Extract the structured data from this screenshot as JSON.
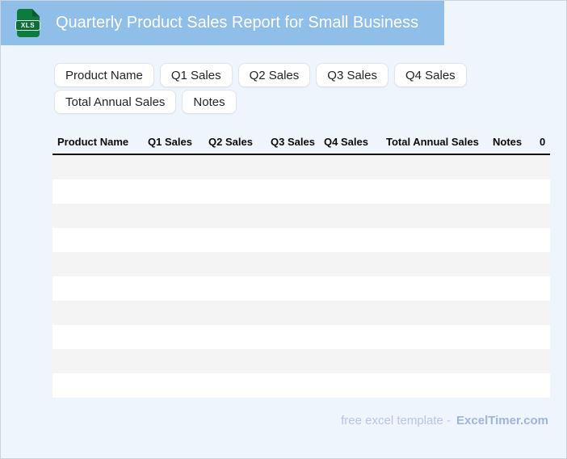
{
  "header": {
    "title": "Quarterly Product Sales Report for Small Business",
    "file_badge": "XLS"
  },
  "field_chips": [
    "Product Name",
    "Q1 Sales",
    "Q2 Sales",
    "Q3 Sales",
    "Q4 Sales",
    "Total Annual Sales",
    "Notes"
  ],
  "table": {
    "columns": [
      "Product Name",
      "Q1 Sales",
      "Q2 Sales",
      "Q3 Sales",
      "Q4 Sales",
      "Total Annual Sales",
      "Notes",
      "0"
    ],
    "empty_row_count": 10
  },
  "footer": {
    "caption": "free excel template -",
    "brand": "ExcelTimer.com"
  },
  "colors": {
    "header_bar": "#8FBEE9",
    "icon_green": "#0E7B3E",
    "icon_fold": "#0A5C2D",
    "page_background": "#EFF5FC",
    "row_stripe": "#F5F4F5",
    "footer_text": "#B6C4EB",
    "footer_brand": "#9FB3DC"
  }
}
